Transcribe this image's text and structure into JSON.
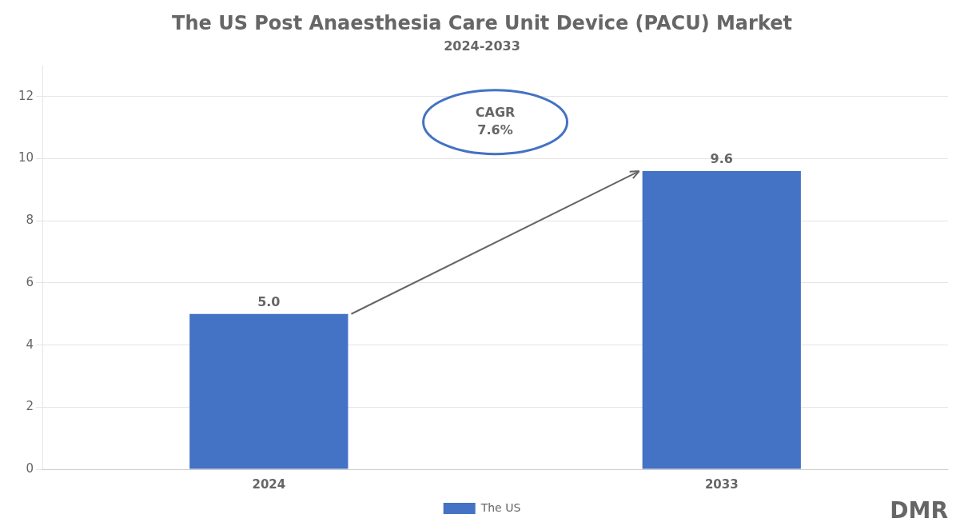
{
  "chart_data": {
    "type": "bar",
    "title": "The US Post Anaesthesia Care Unit Device (PACU) Market",
    "subtitle": "2024-2033",
    "categories": [
      "2024",
      "2033"
    ],
    "series": [
      {
        "name": "The US",
        "color": "#4472C4",
        "values": [
          5.0,
          9.6
        ]
      }
    ],
    "value_labels": [
      "5.0",
      "9.6"
    ],
    "data_labels": true,
    "ylim": [
      0,
      13
    ],
    "yticks": [
      0,
      2,
      4,
      6,
      8,
      10,
      12
    ],
    "grid": true,
    "legend": "bottom",
    "annotations": [
      {
        "text": [
          "CAGR",
          "7.6%"
        ]
      },
      {
        "text": "DMR"
      }
    ]
  }
}
